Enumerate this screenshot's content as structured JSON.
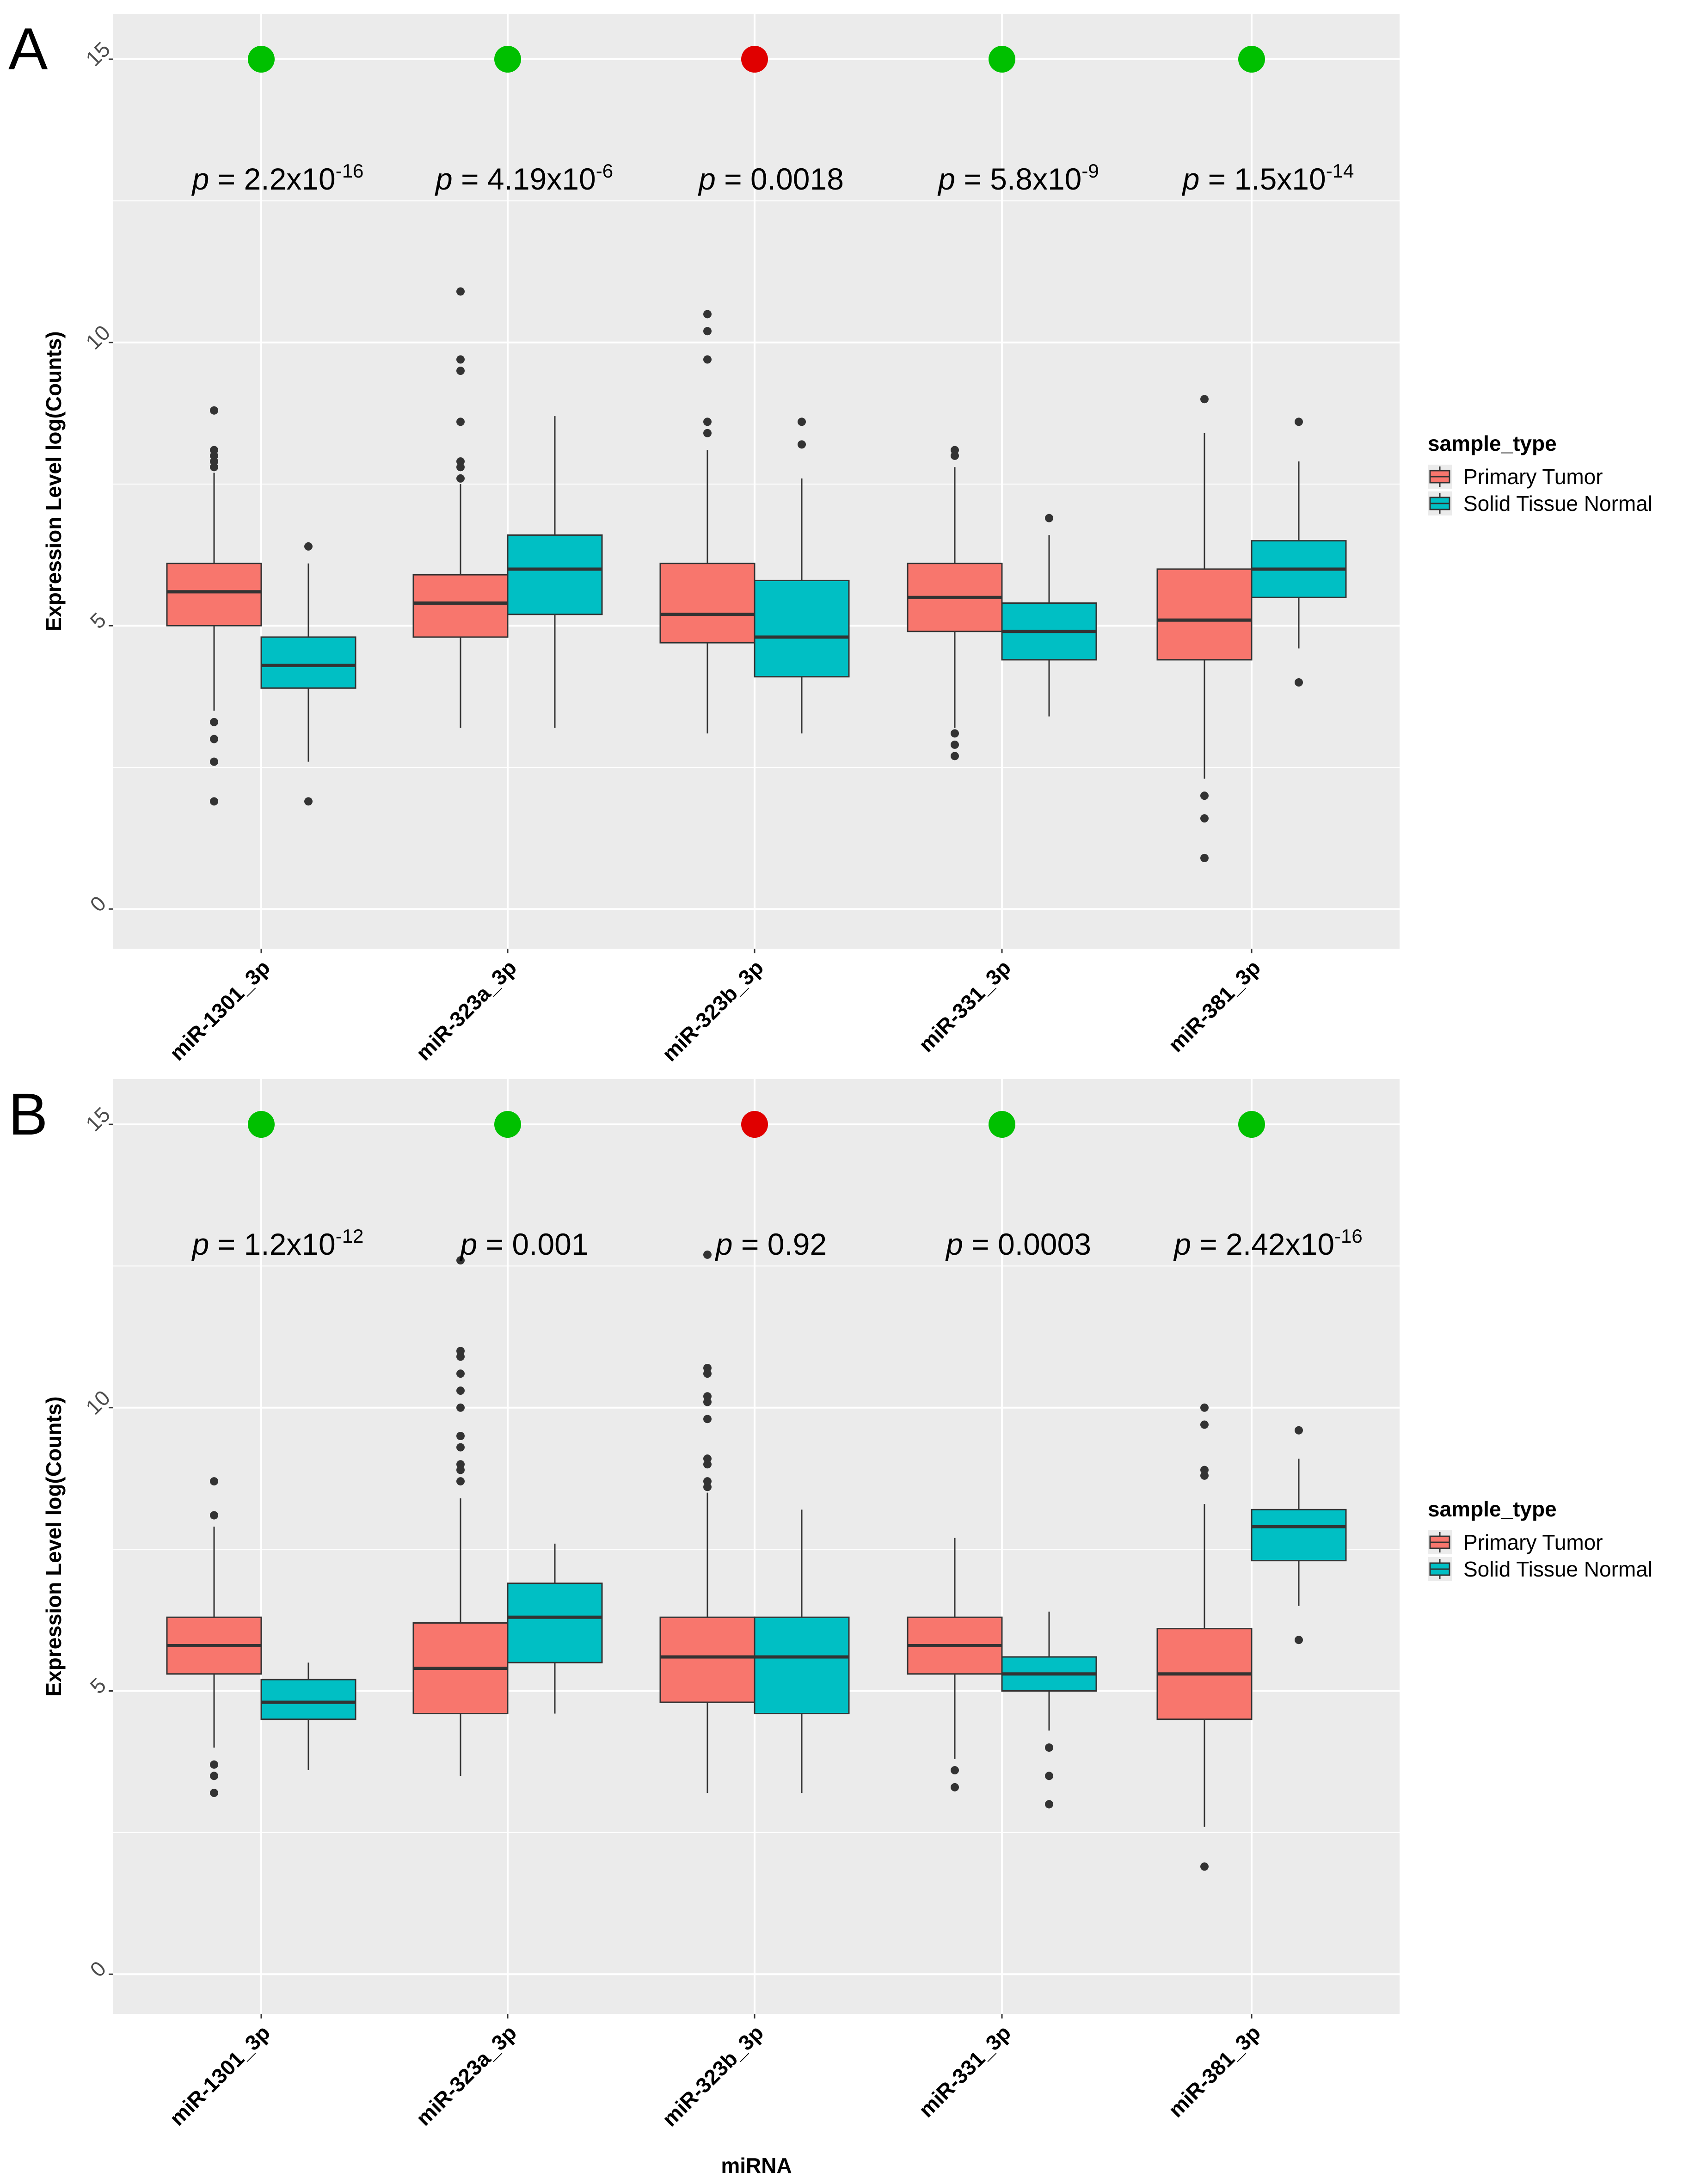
{
  "figure": {
    "panel_labels": [
      "A",
      "B"
    ]
  },
  "colors": {
    "panel_bg": "#EBEBEB",
    "grid": "#FFFFFF",
    "tumor_fill": "#F8766D",
    "normal_fill": "#00BFC4",
    "box_stroke": "#333333",
    "outlier": "#333333",
    "dot_significant": "#00C000",
    "dot_not_significant": "#E00000"
  },
  "chart_data": [
    {
      "type": "box",
      "panel": "A",
      "xlabel": "",
      "ylabel": "Expression Level log(Counts)",
      "ylim": [
        -0.7,
        15.8
      ],
      "yticks": [
        0,
        5,
        10,
        15
      ],
      "grid": true,
      "legend": {
        "title": "sample_type",
        "placement": "right",
        "entries": [
          "Primary Tumor",
          "Solid Tissue Normal"
        ]
      },
      "categories": [
        "miR-1301_3p",
        "miR-323a_3p",
        "miR-323b_3p",
        "miR-331_3p",
        "miR-381_3p"
      ],
      "significance": [
        "significant",
        "significant",
        "not significant",
        "significant",
        "significant"
      ],
      "pvalues": [
        {
          "prefix": "p",
          "eq": " = ",
          "base": "2.2x10",
          "exp": "-16"
        },
        {
          "prefix": "p",
          "eq": " = ",
          "base": "4.19x10",
          "exp": "-6"
        },
        {
          "prefix": "p",
          "eq": " = ",
          "base": "0.0018",
          "exp": ""
        },
        {
          "prefix": "p",
          "eq": " = ",
          "base": "5.8x10",
          "exp": "-9"
        },
        {
          "prefix": "p",
          "eq": " = ",
          "base": "1.5x10",
          "exp": "-14"
        }
      ],
      "series": [
        {
          "name": "Primary Tumor",
          "boxes": [
            {
              "min": 3.5,
              "q1": 5.0,
              "median": 5.6,
              "q3": 6.1,
              "max": 7.7,
              "outliers": [
                7.8,
                7.9,
                8.0,
                8.1,
                8.8,
                3.3,
                3.0,
                2.6,
                1.9
              ]
            },
            {
              "min": 3.2,
              "q1": 4.8,
              "median": 5.4,
              "q3": 5.9,
              "max": 7.5,
              "outliers": [
                7.6,
                7.8,
                7.9,
                8.6,
                9.5,
                9.7,
                10.9
              ]
            },
            {
              "min": 3.1,
              "q1": 4.7,
              "median": 5.2,
              "q3": 6.1,
              "max": 8.1,
              "outliers": [
                8.4,
                8.6,
                9.7,
                10.2,
                10.5
              ]
            },
            {
              "min": 3.2,
              "q1": 4.9,
              "median": 5.5,
              "q3": 6.1,
              "max": 7.8,
              "outliers": [
                8.0,
                8.1,
                3.1,
                2.9,
                2.7
              ]
            },
            {
              "min": 2.3,
              "q1": 4.4,
              "median": 5.1,
              "q3": 6.0,
              "max": 8.4,
              "outliers": [
                9.0,
                2.0,
                1.6,
                0.9
              ]
            }
          ]
        },
        {
          "name": "Solid Tissue Normal",
          "boxes": [
            {
              "min": 2.6,
              "q1": 3.9,
              "median": 4.3,
              "q3": 4.8,
              "max": 6.1,
              "outliers": [
                6.4,
                1.9
              ]
            },
            {
              "min": 3.2,
              "q1": 5.2,
              "median": 6.0,
              "q3": 6.6,
              "max": 8.7,
              "outliers": []
            },
            {
              "min": 3.1,
              "q1": 4.1,
              "median": 4.8,
              "q3": 5.8,
              "max": 7.6,
              "outliers": [
                8.2,
                8.6
              ]
            },
            {
              "min": 3.4,
              "q1": 4.4,
              "median": 4.9,
              "q3": 5.4,
              "max": 6.6,
              "outliers": [
                6.9
              ]
            },
            {
              "min": 4.6,
              "q1": 5.5,
              "median": 6.0,
              "q3": 6.5,
              "max": 7.9,
              "outliers": [
                8.6,
                4.0
              ]
            }
          ]
        }
      ]
    },
    {
      "type": "box",
      "panel": "B",
      "xlabel": "miRNA",
      "ylabel": "Expression Level log(Counts)",
      "ylim": [
        -0.7,
        15.8
      ],
      "yticks": [
        0,
        5,
        10,
        15
      ],
      "grid": true,
      "legend": {
        "title": "sample_type",
        "placement": "right",
        "entries": [
          "Primary Tumor",
          "Solid Tissue Normal"
        ]
      },
      "categories": [
        "miR-1301_3p",
        "miR-323a_3p",
        "miR-323b_3p",
        "miR-331_3p",
        "miR-381_3p"
      ],
      "significance": [
        "significant",
        "significant",
        "not significant",
        "significant",
        "significant"
      ],
      "pvalues": [
        {
          "prefix": "p",
          "eq": " = ",
          "base": "1.2x10",
          "exp": "-12"
        },
        {
          "prefix": "p",
          "eq": " = ",
          "base": "0.001",
          "exp": ""
        },
        {
          "prefix": "p",
          "eq": " = ",
          "base": "0.92",
          "exp": ""
        },
        {
          "prefix": "p",
          "eq": " = ",
          "base": "0.0003",
          "exp": ""
        },
        {
          "prefix": "p",
          "eq": " = ",
          "base": "2.42x10",
          "exp": "-16"
        }
      ],
      "series": [
        {
          "name": "Primary Tumor",
          "boxes": [
            {
              "min": 4.0,
              "q1": 5.3,
              "median": 5.8,
              "q3": 6.3,
              "max": 7.9,
              "outliers": [
                8.1,
                8.7,
                3.7,
                3.5,
                3.2
              ]
            },
            {
              "min": 3.5,
              "q1": 4.6,
              "median": 5.4,
              "q3": 6.2,
              "max": 8.4,
              "outliers": [
                8.7,
                8.9,
                9.0,
                9.3,
                9.5,
                10.0,
                10.3,
                10.6,
                10.9,
                11.0,
                12.6
              ]
            },
            {
              "min": 3.2,
              "q1": 4.8,
              "median": 5.6,
              "q3": 6.3,
              "max": 8.5,
              "outliers": [
                8.6,
                8.7,
                9.0,
                9.1,
                9.8,
                10.1,
                10.2,
                10.6,
                10.7,
                12.7
              ]
            },
            {
              "min": 3.8,
              "q1": 5.3,
              "median": 5.8,
              "q3": 6.3,
              "max": 7.7,
              "outliers": [
                3.6,
                3.3
              ]
            },
            {
              "min": 2.6,
              "q1": 4.5,
              "median": 5.3,
              "q3": 6.1,
              "max": 8.3,
              "outliers": [
                8.8,
                8.9,
                9.7,
                10.0,
                1.9
              ]
            }
          ]
        },
        {
          "name": "Solid Tissue Normal",
          "boxes": [
            {
              "min": 3.6,
              "q1": 4.5,
              "median": 4.8,
              "q3": 5.2,
              "max": 5.5,
              "outliers": []
            },
            {
              "min": 4.6,
              "q1": 5.5,
              "median": 6.3,
              "q3": 6.9,
              "max": 7.6,
              "outliers": []
            },
            {
              "min": 3.2,
              "q1": 4.6,
              "median": 5.6,
              "q3": 6.3,
              "max": 8.2,
              "outliers": []
            },
            {
              "min": 4.3,
              "q1": 5.0,
              "median": 5.3,
              "q3": 5.6,
              "max": 6.4,
              "outliers": [
                4.0,
                3.5,
                3.0
              ]
            },
            {
              "min": 6.5,
              "q1": 7.3,
              "median": 7.9,
              "q3": 8.2,
              "max": 9.1,
              "outliers": [
                9.6,
                5.9
              ]
            }
          ]
        }
      ]
    }
  ]
}
